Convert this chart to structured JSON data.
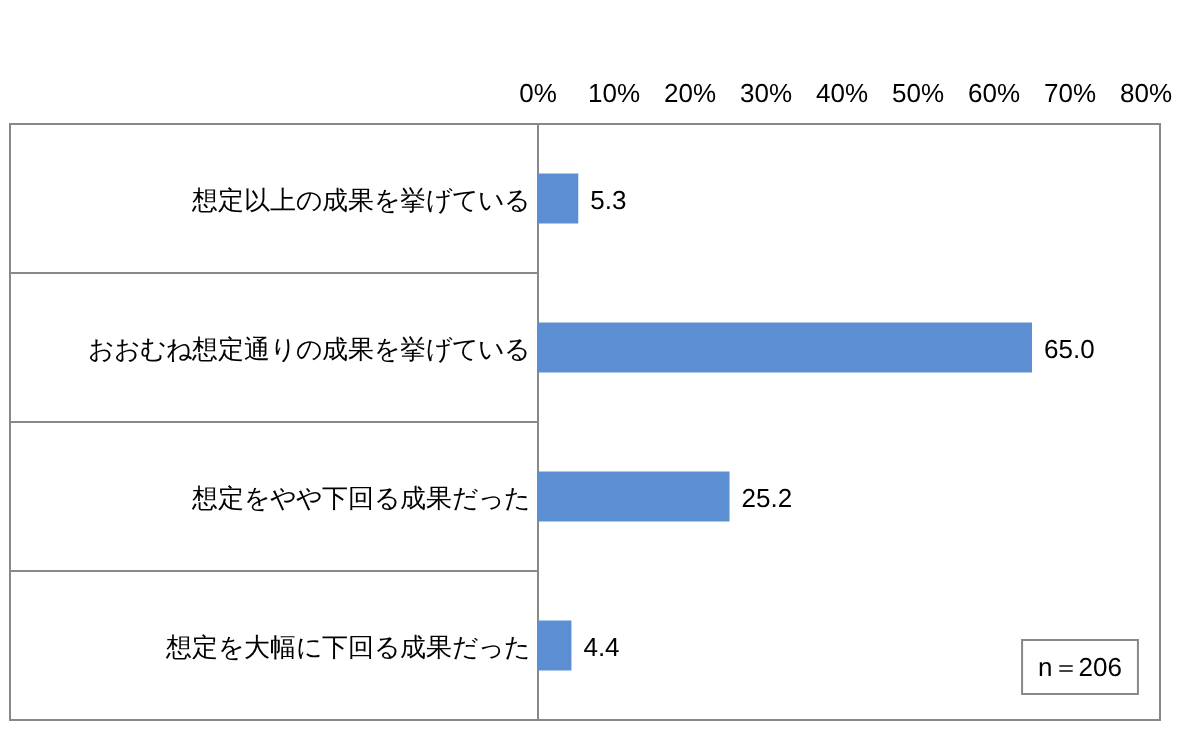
{
  "chart_data": {
    "type": "bar",
    "orientation": "horizontal",
    "categories": [
      "想定以上の成果を挙げている",
      "おおむね想定通りの成果を挙げている",
      "想定をやや下回る成果だった",
      "想定を大幅に下回る成果だった"
    ],
    "values": [
      5.3,
      65.0,
      25.2,
      4.4
    ],
    "value_labels": [
      "5.3",
      "65.0",
      "25.2",
      "4.4"
    ],
    "color": "#5b8fd2",
    "xlim": [
      0,
      80
    ],
    "xticks": [
      {
        "value": 0,
        "label": "0%"
      },
      {
        "value": 10,
        "label": "10%"
      },
      {
        "value": 20,
        "label": "20%"
      },
      {
        "value": 30,
        "label": "30%"
      },
      {
        "value": 40,
        "label": "40%"
      },
      {
        "value": 50,
        "label": "50%"
      },
      {
        "value": 60,
        "label": "60%"
      },
      {
        "value": 70,
        "label": "70%"
      },
      {
        "value": 80,
        "label": "80%"
      }
    ],
    "annotations": [
      "n＝206"
    ]
  }
}
